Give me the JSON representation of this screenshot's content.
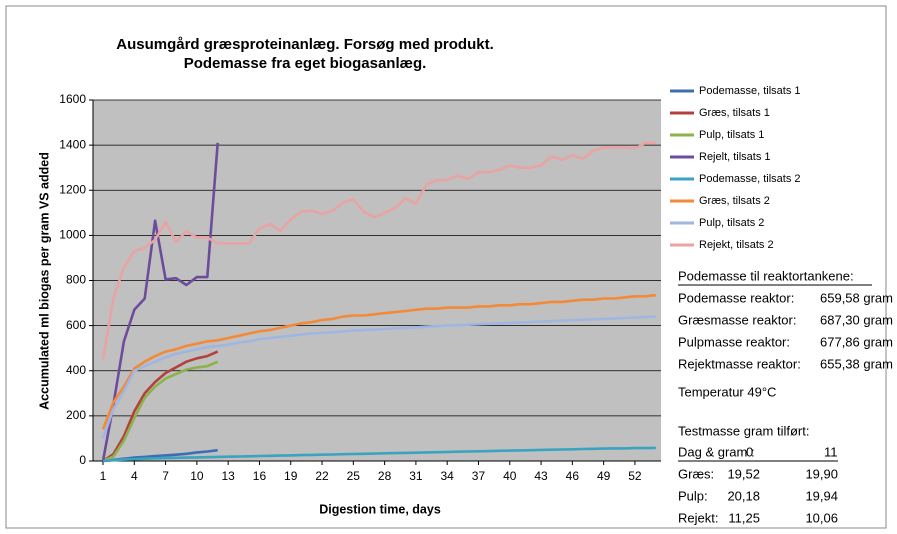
{
  "chart_data": {
    "type": "line",
    "title": [
      "Ausumgård græsproteinanlæg. Forsøg med produkt.",
      "Podemasse fra eget biogasanlæg."
    ],
    "y_label": "Accumulated ml biogas per gram VS added",
    "x_label": "Digestion time, days",
    "x": [
      1,
      2,
      3,
      4,
      5,
      6,
      7,
      8,
      9,
      10,
      11,
      12,
      13,
      14,
      15,
      16,
      17,
      18,
      19,
      20,
      21,
      22,
      23,
      24,
      25,
      26,
      27,
      28,
      29,
      30,
      31,
      32,
      33,
      34,
      35,
      36,
      37,
      38,
      39,
      40,
      41,
      42,
      43,
      44,
      45,
      46,
      47,
      48,
      49,
      50,
      51,
      52,
      53,
      54
    ],
    "xlim": [
      1,
      54.5
    ],
    "xticks": [
      1,
      4,
      7,
      10,
      13,
      16,
      19,
      22,
      25,
      28,
      31,
      34,
      37,
      40,
      43,
      46,
      49,
      52
    ],
    "ylim": [
      0,
      1600
    ],
    "yticks": [
      0,
      200,
      400,
      600,
      800,
      1000,
      1200,
      1400,
      1600
    ],
    "grid": true,
    "legend": "right",
    "series": [
      {
        "name": "Podemasse, tilsats 1",
        "color": "#3d6db3",
        "values": [
          0,
          5,
          10,
          15,
          18,
          22,
          25,
          28,
          32,
          38,
          42,
          48,
          null,
          null,
          null,
          null,
          null,
          null,
          null,
          null,
          null,
          null,
          null,
          null,
          null,
          null,
          null,
          null,
          null,
          null,
          null,
          null,
          null,
          null,
          null,
          null,
          null,
          null,
          null,
          null,
          null,
          null,
          null,
          null,
          null,
          null,
          null,
          null,
          null,
          null,
          null,
          null,
          null,
          null
        ]
      },
      {
        "name": "Græs, tilsats 1",
        "color": "#b3403d",
        "values": [
          0,
          30,
          110,
          220,
          300,
          350,
          390,
          415,
          440,
          455,
          465,
          485,
          null,
          null,
          null,
          null,
          null,
          null,
          null,
          null,
          null,
          null,
          null,
          null,
          null,
          null,
          null,
          null,
          null,
          null,
          null,
          null,
          null,
          null,
          null,
          null,
          null,
          null,
          null,
          null,
          null,
          null,
          null,
          null,
          null,
          null,
          null,
          null,
          null,
          null,
          null,
          null,
          null,
          null
        ]
      },
      {
        "name": "Pulp, tilsats 1",
        "color": "#8cb34b",
        "values": [
          0,
          20,
          90,
          190,
          280,
          330,
          365,
          385,
          405,
          415,
          420,
          440,
          null,
          null,
          null,
          null,
          null,
          null,
          null,
          null,
          null,
          null,
          null,
          null,
          null,
          null,
          null,
          null,
          null,
          null,
          null,
          null,
          null,
          null,
          null,
          null,
          null,
          null,
          null,
          null,
          null,
          null,
          null,
          null,
          null,
          null,
          null,
          null,
          null,
          null,
          null,
          null,
          null,
          null
        ]
      },
      {
        "name": "Rejelt, tilsats 1",
        "color": "#6d4c9c",
        "values": [
          0,
          250,
          530,
          670,
          720,
          1065,
          805,
          810,
          780,
          815,
          815,
          1410,
          null,
          null,
          null,
          null,
          null,
          null,
          null,
          null,
          null,
          null,
          null,
          null,
          null,
          null,
          null,
          null,
          null,
          null,
          null,
          null,
          null,
          null,
          null,
          null,
          null,
          null,
          null,
          null,
          null,
          null,
          null,
          null,
          null,
          null,
          null,
          null,
          null,
          null,
          null,
          null,
          null,
          null
        ]
      },
      {
        "name": "Podemasse, tilsats 2",
        "color": "#3aa3bf",
        "values": [
          0,
          3,
          6,
          8,
          10,
          12,
          13,
          14,
          15,
          16,
          17,
          18,
          19,
          20,
          21,
          22,
          23,
          24,
          25,
          26,
          27,
          28,
          29,
          30,
          31,
          32,
          33,
          34,
          35,
          36,
          37,
          38,
          39,
          40,
          41,
          42,
          43,
          44,
          45,
          46,
          47,
          48,
          49,
          50,
          51,
          52,
          53,
          54,
          55,
          56,
          56,
          57,
          57,
          58
        ]
      },
      {
        "name": "Græs, tilsats 2",
        "color": "#f28a3a",
        "values": [
          140,
          260,
          330,
          410,
          440,
          465,
          485,
          495,
          510,
          520,
          530,
          535,
          545,
          555,
          565,
          575,
          580,
          590,
          600,
          610,
          615,
          625,
          630,
          640,
          645,
          645,
          650,
          655,
          660,
          665,
          670,
          675,
          675,
          680,
          680,
          680,
          685,
          685,
          690,
          690,
          695,
          695,
          700,
          705,
          705,
          710,
          715,
          715,
          720,
          720,
          725,
          730,
          730,
          735
        ]
      },
      {
        "name": "Pulp, tilsats 2",
        "color": "#9fb5e2",
        "values": [
          100,
          230,
          310,
          400,
          420,
          440,
          460,
          475,
          485,
          495,
          505,
          510,
          515,
          525,
          530,
          540,
          545,
          550,
          555,
          560,
          565,
          568,
          570,
          575,
          578,
          580,
          582,
          585,
          588,
          590,
          592,
          595,
          598,
          600,
          602,
          604,
          606,
          608,
          610,
          612,
          614,
          616,
          618,
          620,
          622,
          624,
          626,
          628,
          630,
          632,
          634,
          636,
          638,
          640
        ]
      },
      {
        "name": "Rejekt, tilsats 2",
        "color": "#e9a3a2",
        "values": [
          450,
          720,
          860,
          930,
          945,
          980,
          1060,
          970,
          1020,
          990,
          990,
          965,
          965,
          965,
          965,
          1030,
          1050,
          1020,
          1070,
          1105,
          1110,
          1095,
          1110,
          1145,
          1160,
          1105,
          1080,
          1100,
          1120,
          1165,
          1140,
          1225,
          1245,
          1245,
          1265,
          1250,
          1280,
          1280,
          1290,
          1310,
          1300,
          1300,
          1310,
          1350,
          1335,
          1355,
          1340,
          1375,
          1390,
          1390,
          1390,
          1385,
          1410,
          1410
        ]
      }
    ]
  },
  "side_panel": {
    "heading": "Podemasse til reaktortankene:",
    "masses": [
      [
        "Podemasse reaktor:",
        "659,58 gram"
      ],
      [
        "Græsmasse reaktor:",
        "687,30 gram"
      ],
      [
        "Pulpmasse reaktor:",
        "677,86 gram"
      ],
      [
        "Rejektmasse reaktor:",
        "655,38 gram"
      ]
    ],
    "temperature": "Temperatur 49°C",
    "test_heading": "Testmasse gram tilført:",
    "test_header": [
      "Dag & gram :",
      "0",
      "11"
    ],
    "test_rows": [
      [
        "Græs:",
        "19,52",
        "19,90"
      ],
      [
        "Pulp:",
        "20,18",
        "19,94"
      ],
      [
        "Rejekt:",
        "11,25",
        "10,06"
      ]
    ]
  }
}
